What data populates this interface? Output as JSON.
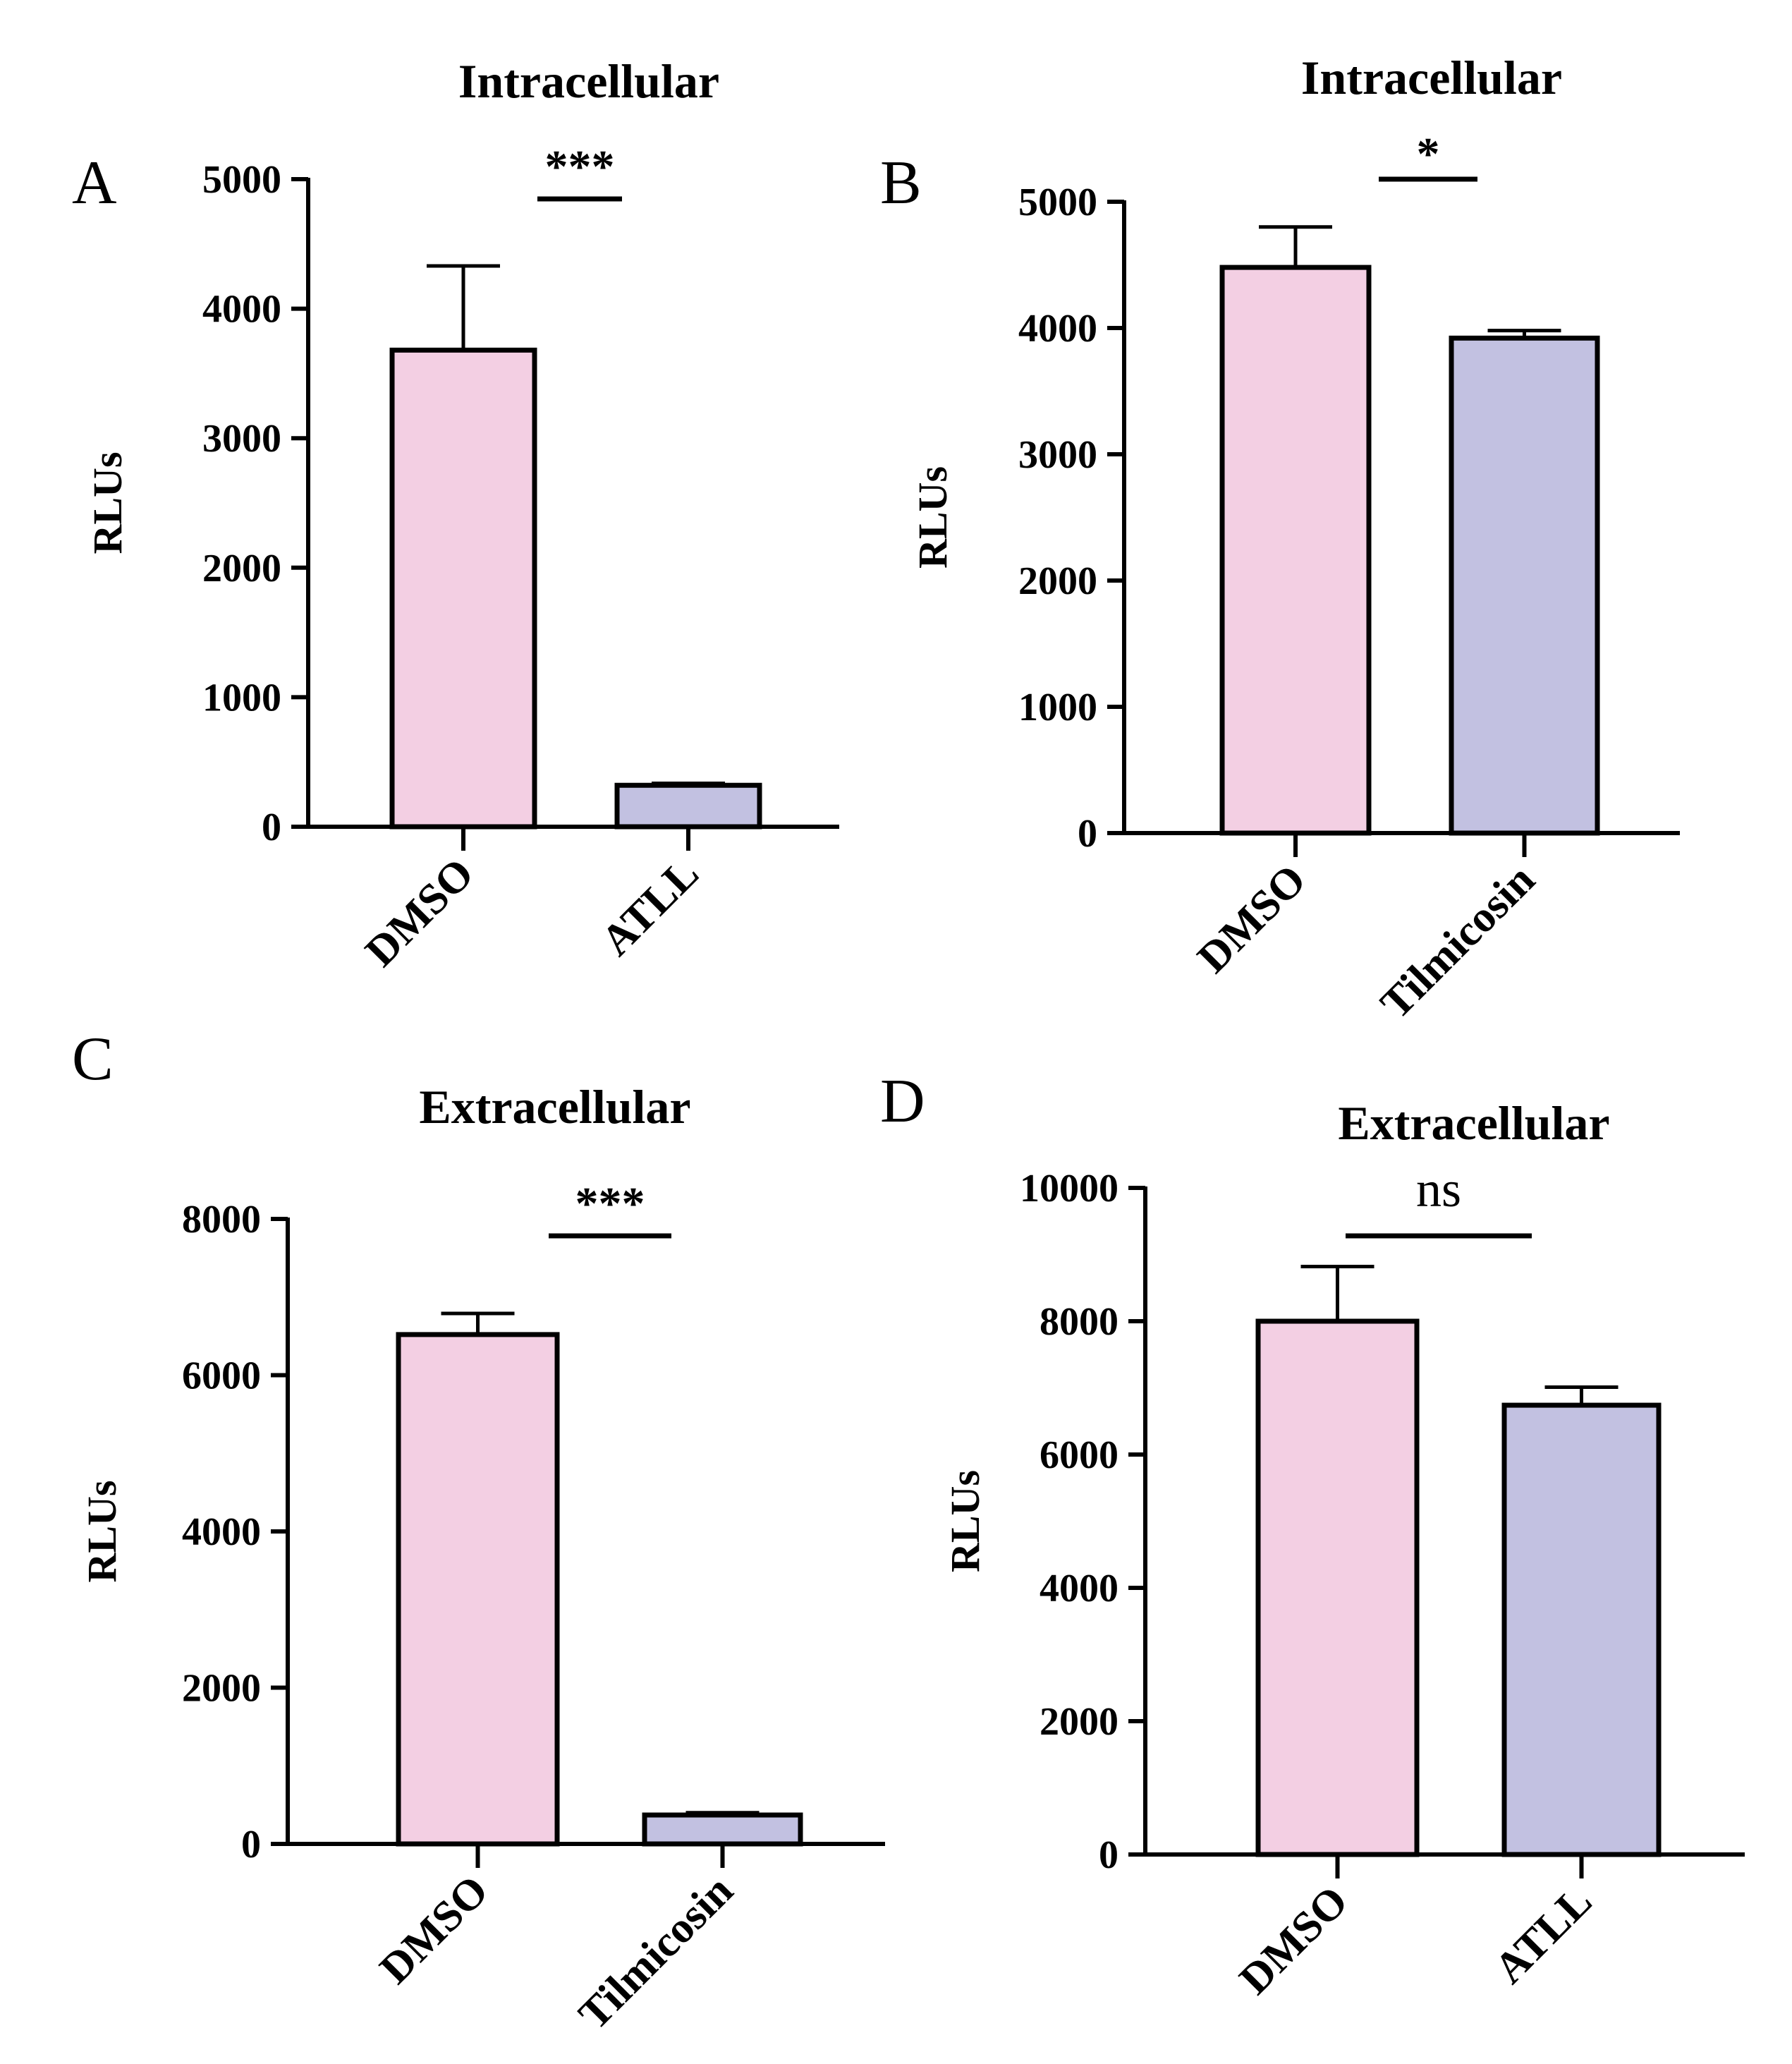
{
  "chart_data": [
    {
      "panel": "A",
      "type": "bar",
      "title": "Intracellular",
      "ylabel": "RLUs",
      "xlabel": "",
      "categories": [
        "DMSO",
        "ATLL"
      ],
      "values": [
        3680,
        320
      ],
      "errors": [
        650,
        15
      ],
      "ylim": [
        0,
        5000
      ],
      "yticks": [
        0,
        1000,
        2000,
        3000,
        4000,
        5000
      ],
      "bar_colors": [
        "#f3cfe3",
        "#c2c1e1"
      ],
      "significance": "***"
    },
    {
      "panel": "B",
      "type": "bar",
      "title": "Intracellular",
      "ylabel": "RLUs",
      "xlabel": "",
      "categories": [
        "DMSO",
        "Tilmicosin"
      ],
      "values": [
        4480,
        3920
      ],
      "errors": [
        320,
        60
      ],
      "ylim": [
        0,
        5000
      ],
      "yticks": [
        0,
        1000,
        2000,
        3000,
        4000,
        5000
      ],
      "bar_colors": [
        "#f3cfe3",
        "#c2c1e1"
      ],
      "significance": "*"
    },
    {
      "panel": "C",
      "type": "bar",
      "title": "Extracellular",
      "ylabel": "RLUs",
      "xlabel": "",
      "categories": [
        "DMSO",
        "Tilmicosin"
      ],
      "values": [
        6520,
        370
      ],
      "errors": [
        270,
        30
      ],
      "ylim": [
        0,
        8000
      ],
      "yticks": [
        0,
        2000,
        4000,
        6000,
        8000
      ],
      "bar_colors": [
        "#f3cfe3",
        "#c2c1e1"
      ],
      "significance": "***"
    },
    {
      "panel": "D",
      "type": "bar",
      "title": "Extracellular",
      "ylabel": "RLUs",
      "xlabel": "",
      "categories": [
        "DMSO",
        "ATLL"
      ],
      "values": [
        8000,
        6740
      ],
      "errors": [
        820,
        270
      ],
      "ylim": [
        0,
        10000
      ],
      "yticks": [
        0,
        2000,
        4000,
        6000,
        8000,
        10000
      ],
      "bar_colors": [
        "#f3cfe3",
        "#c2c1e1"
      ],
      "significance": "ns"
    }
  ]
}
